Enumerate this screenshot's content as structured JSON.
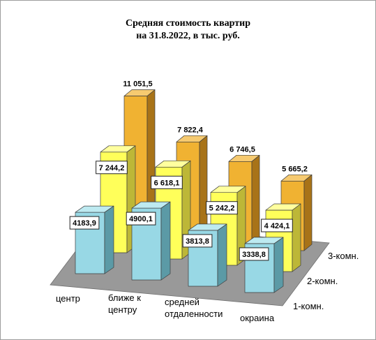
{
  "chart_data": {
    "type": "bar",
    "three_d": true,
    "data_labels": true,
    "grid": false,
    "title": [
      "Средняя стоимость квартир",
      "на 31.8.2022, в тыс. руб."
    ],
    "categories": [
      "центр",
      "ближе к центру",
      "средней отдаленности",
      "окраина"
    ],
    "series": [
      {
        "name": "1-комн.",
        "values": [
          4183.9,
          4900.1,
          3813.8,
          3338.8
        ],
        "labels": [
          "4183,9",
          "4900,1",
          "3813,8",
          "3338,8"
        ],
        "colors": {
          "front": "#98d8e5",
          "side": "#5b9aa6",
          "top": "#bdeaf1"
        }
      },
      {
        "name": "2-комн.",
        "values": [
          7244.2,
          6618.1,
          5242.2,
          4424.1
        ],
        "labels": [
          "7 244,2",
          "6 618,1",
          "5 242,2",
          "4 424,1"
        ],
        "colors": {
          "front": "#ffff5a",
          "side": "#bdb737",
          "top": "#ffff9e"
        }
      },
      {
        "name": "3-комн.",
        "values": [
          11051.5,
          7822.4,
          6746.5,
          5665.2
        ],
        "labels": [
          "11 051,5",
          "7 822,4",
          "6 746,5",
          "5 665,2"
        ],
        "colors": {
          "front": "#f0b232",
          "side": "#a87318",
          "top": "#f6ca70"
        }
      }
    ],
    "floor_color": "#999999"
  }
}
